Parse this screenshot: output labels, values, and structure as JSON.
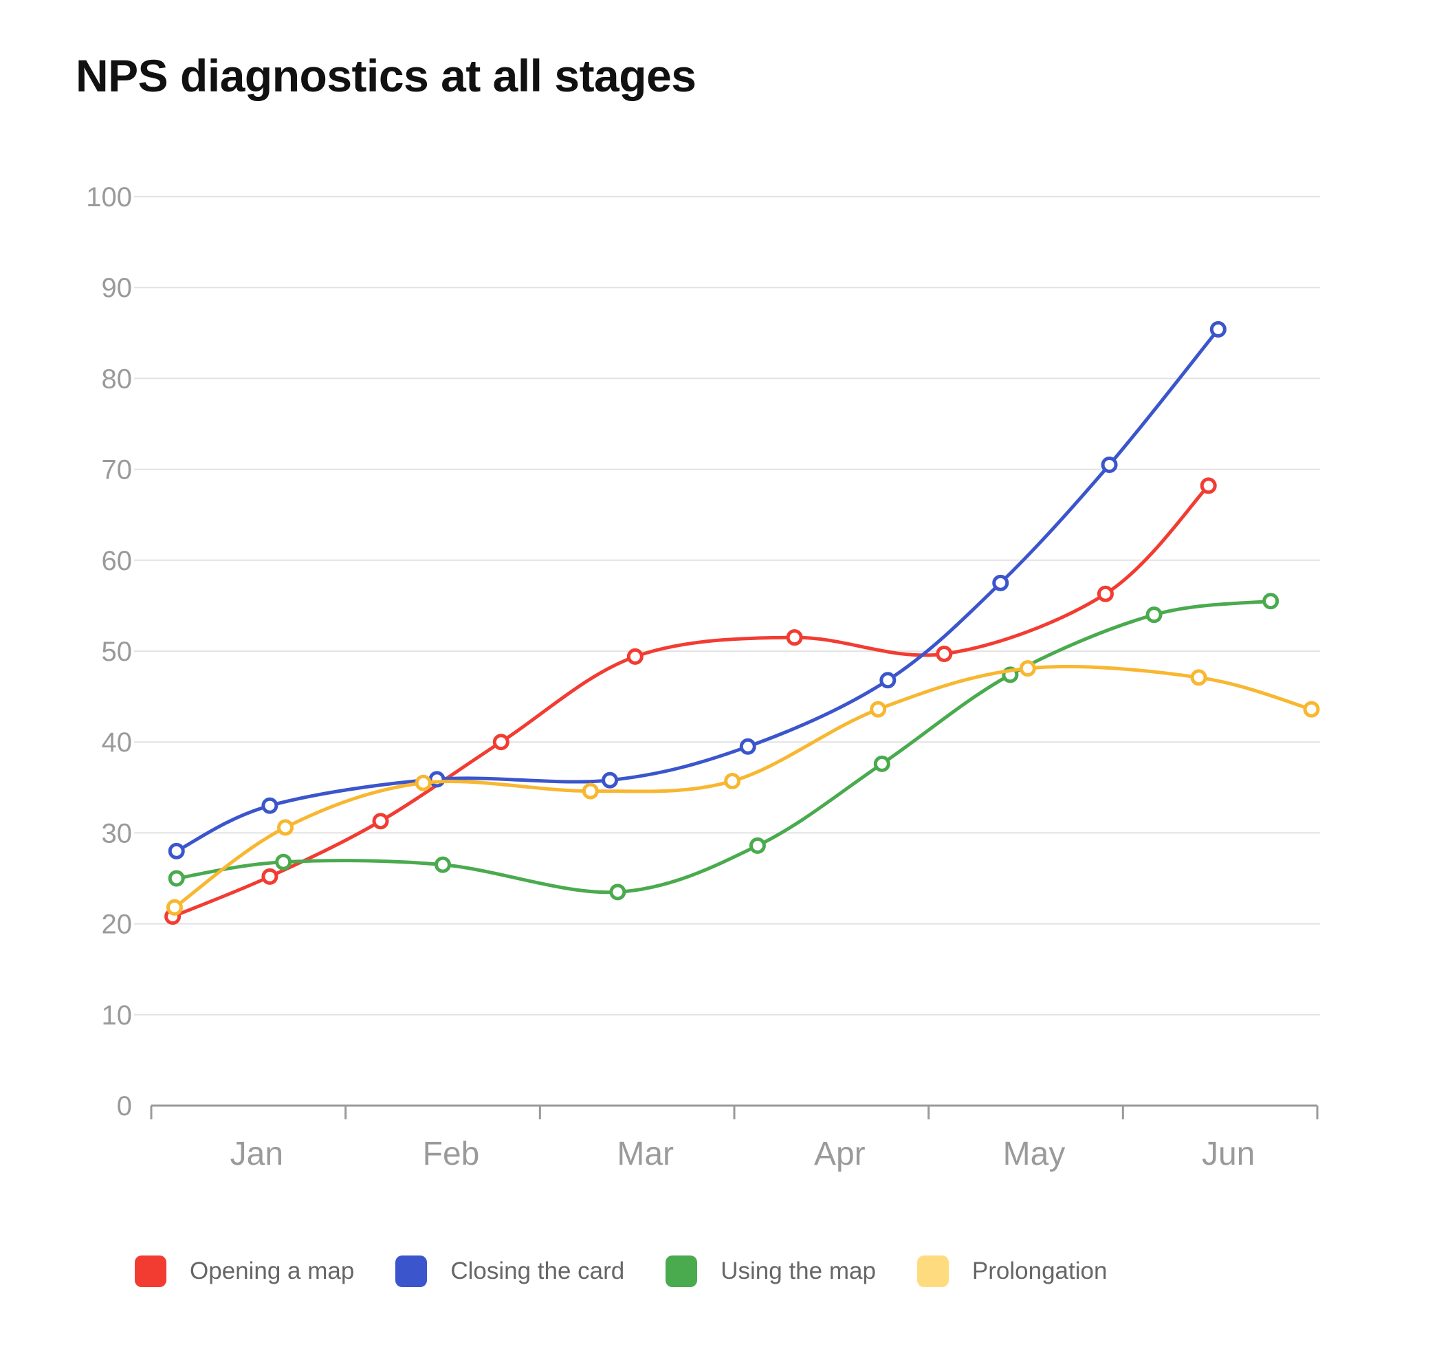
{
  "title": "NPS diagnostics at all stages",
  "chart_data": {
    "type": "line",
    "title": "NPS diagnostics at all stages",
    "xlabel": "",
    "ylabel": "",
    "categories": [
      "Jan",
      "Feb",
      "Mar",
      "Apr",
      "May",
      "Jun"
    ],
    "ylim": [
      0,
      100
    ],
    "yticks": [
      0,
      10,
      20,
      30,
      40,
      50,
      60,
      70,
      80,
      90,
      100
    ],
    "xlim": [
      0,
      6
    ],
    "grid": true,
    "legend_position": "bottom",
    "smooth": true,
    "series": [
      {
        "name": "Opening a map",
        "color": "#f23c32",
        "points": [
          [
            0.11,
            20.8
          ],
          [
            0.61,
            25.2
          ],
          [
            1.18,
            31.3
          ],
          [
            1.8,
            40
          ],
          [
            2.49,
            49.4
          ],
          [
            3.31,
            51.5
          ],
          [
            4.08,
            49.7
          ],
          [
            4.91,
            56.3
          ],
          [
            5.44,
            68.2
          ]
        ]
      },
      {
        "name": "Closing the card",
        "color": "#3b55cc",
        "points": [
          [
            0.13,
            28
          ],
          [
            0.61,
            33
          ],
          [
            1.47,
            35.9
          ],
          [
            2.36,
            35.8
          ],
          [
            3.07,
            39.5
          ],
          [
            3.79,
            46.8
          ],
          [
            4.37,
            57.5
          ],
          [
            4.93,
            70.5
          ],
          [
            5.49,
            85.4
          ]
        ]
      },
      {
        "name": "Using the map",
        "color": "#4aaa4e",
        "points": [
          [
            0.13,
            25
          ],
          [
            0.68,
            26.8
          ],
          [
            1.5,
            26.5
          ],
          [
            2.4,
            23.5
          ],
          [
            3.12,
            28.6
          ],
          [
            3.76,
            37.6
          ],
          [
            4.42,
            47.4
          ],
          [
            5.16,
            54
          ],
          [
            5.76,
            55.5
          ]
        ]
      },
      {
        "name": "Prolongation",
        "color": "#f8b730",
        "legend_color": "#ffdb80",
        "points": [
          [
            0.12,
            21.8
          ],
          [
            0.69,
            30.6
          ],
          [
            1.4,
            35.5
          ],
          [
            2.26,
            34.6
          ],
          [
            2.99,
            35.7
          ],
          [
            3.74,
            43.6
          ],
          [
            4.51,
            48.1
          ],
          [
            5.39,
            47.1
          ],
          [
            5.97,
            43.6
          ]
        ]
      }
    ]
  }
}
